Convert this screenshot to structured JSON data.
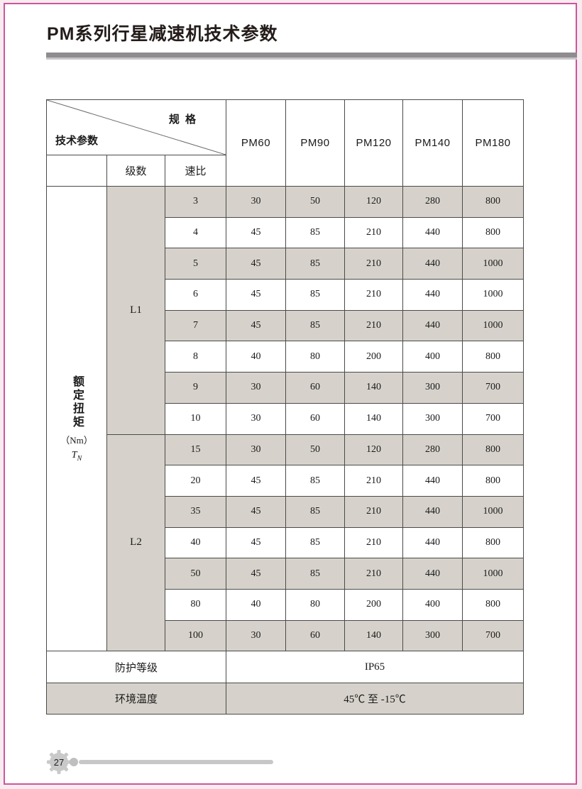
{
  "page": {
    "title": "PM系列行星减速机技术参数",
    "page_number": "27"
  },
  "colors": {
    "accent_pink": "#ce559c",
    "page_background": "#f8ecf1",
    "shaded_cell": "#d6d2cb",
    "divider_gray": "#8f8c8f",
    "table_border": "#4a4a4a"
  },
  "table": {
    "corner": {
      "spec_label": "规 格",
      "param_label": "技术参数"
    },
    "columns": [
      "PM60",
      "PM90",
      "PM120",
      "PM140",
      "PM180"
    ],
    "sub_headers": {
      "stage": "级数",
      "ratio": "速比"
    },
    "row_header": {
      "label": "额定扭矩",
      "unit": "（Nm）",
      "symbol": "T",
      "symbol_sub": "N"
    },
    "groups": [
      {
        "stage": "L1",
        "rows": [
          {
            "ratio": "3",
            "values": [
              "30",
              "50",
              "120",
              "280",
              "800"
            ]
          },
          {
            "ratio": "4",
            "values": [
              "45",
              "85",
              "210",
              "440",
              "800"
            ]
          },
          {
            "ratio": "5",
            "values": [
              "45",
              "85",
              "210",
              "440",
              "1000"
            ]
          },
          {
            "ratio": "6",
            "values": [
              "45",
              "85",
              "210",
              "440",
              "1000"
            ]
          },
          {
            "ratio": "7",
            "values": [
              "45",
              "85",
              "210",
              "440",
              "1000"
            ]
          },
          {
            "ratio": "8",
            "values": [
              "40",
              "80",
              "200",
              "400",
              "800"
            ]
          },
          {
            "ratio": "9",
            "values": [
              "30",
              "60",
              "140",
              "300",
              "700"
            ]
          },
          {
            "ratio": "10",
            "values": [
              "30",
              "60",
              "140",
              "300",
              "700"
            ]
          }
        ]
      },
      {
        "stage": "L2",
        "rows": [
          {
            "ratio": "15",
            "values": [
              "30",
              "50",
              "120",
              "280",
              "800"
            ]
          },
          {
            "ratio": "20",
            "values": [
              "45",
              "85",
              "210",
              "440",
              "800"
            ]
          },
          {
            "ratio": "35",
            "values": [
              "45",
              "85",
              "210",
              "440",
              "1000"
            ]
          },
          {
            "ratio": "40",
            "values": [
              "45",
              "85",
              "210",
              "440",
              "800"
            ]
          },
          {
            "ratio": "50",
            "values": [
              "45",
              "85",
              "210",
              "440",
              "1000"
            ]
          },
          {
            "ratio": "80",
            "values": [
              "40",
              "80",
              "200",
              "400",
              "800"
            ]
          },
          {
            "ratio": "100",
            "values": [
              "30",
              "60",
              "140",
              "300",
              "700"
            ]
          }
        ]
      }
    ],
    "footer_rows": [
      {
        "label": "防护等级",
        "value": "IP65"
      },
      {
        "label": "环境温度",
        "value": "45℃ 至 -15℃"
      }
    ]
  }
}
